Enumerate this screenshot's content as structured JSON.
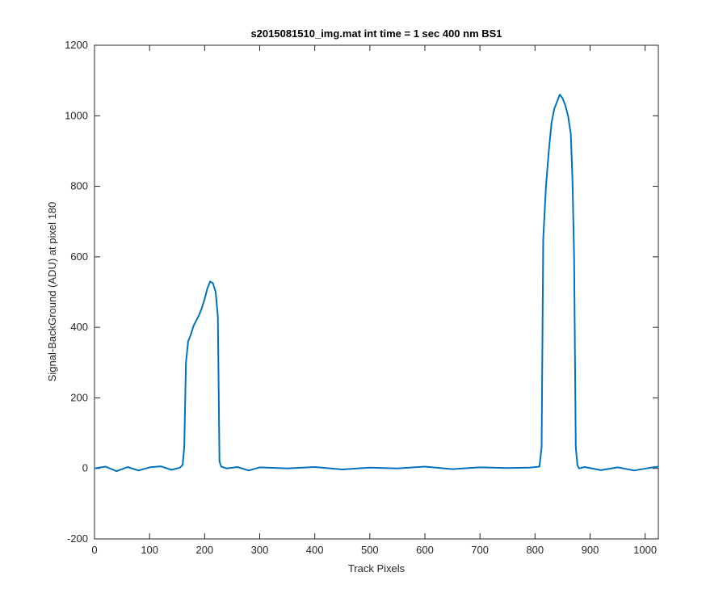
{
  "chart_data": {
    "type": "line",
    "title": "s2015081510_img.mat int time = 1 sec  400 nm BS1",
    "xlabel": "Track Pixels",
    "ylabel": "Signal-BackGround (ADU) at pixel 180",
    "xlim": [
      0,
      1024
    ],
    "ylim": [
      -200,
      1200
    ],
    "xticks": [
      0,
      100,
      200,
      300,
      400,
      500,
      600,
      700,
      800,
      900,
      1000
    ],
    "yticks": [
      -200,
      0,
      200,
      400,
      600,
      800,
      1000,
      1200
    ],
    "grid": false,
    "legend": "none",
    "line_color": "#0072BD",
    "series": [
      {
        "x": [
          0,
          20,
          40,
          60,
          80,
          100,
          120,
          140,
          155,
          160,
          163,
          166,
          170,
          175,
          180,
          185,
          190,
          195,
          200,
          205,
          210,
          215,
          220,
          224,
          227,
          230,
          240,
          260,
          280,
          300,
          350,
          400,
          450,
          500,
          550,
          600,
          650,
          700,
          750,
          790,
          808,
          812,
          815,
          820,
          825,
          830,
          835,
          840,
          845,
          850,
          855,
          860,
          865,
          868,
          871,
          874,
          877,
          880,
          890,
          920,
          950,
          980,
          1010,
          1024
        ],
        "y": [
          0,
          5,
          -8,
          4,
          -6,
          3,
          6,
          -4,
          2,
          10,
          60,
          300,
          360,
          380,
          405,
          420,
          435,
          455,
          480,
          510,
          530,
          525,
          500,
          430,
          20,
          5,
          0,
          4,
          -6,
          3,
          0,
          4,
          -3,
          2,
          0,
          5,
          -2,
          3,
          1,
          2,
          5,
          60,
          650,
          800,
          900,
          980,
          1020,
          1040,
          1060,
          1050,
          1030,
          1000,
          950,
          820,
          600,
          60,
          10,
          0,
          4,
          -5,
          3,
          -6,
          2,
          5
        ]
      }
    ]
  }
}
